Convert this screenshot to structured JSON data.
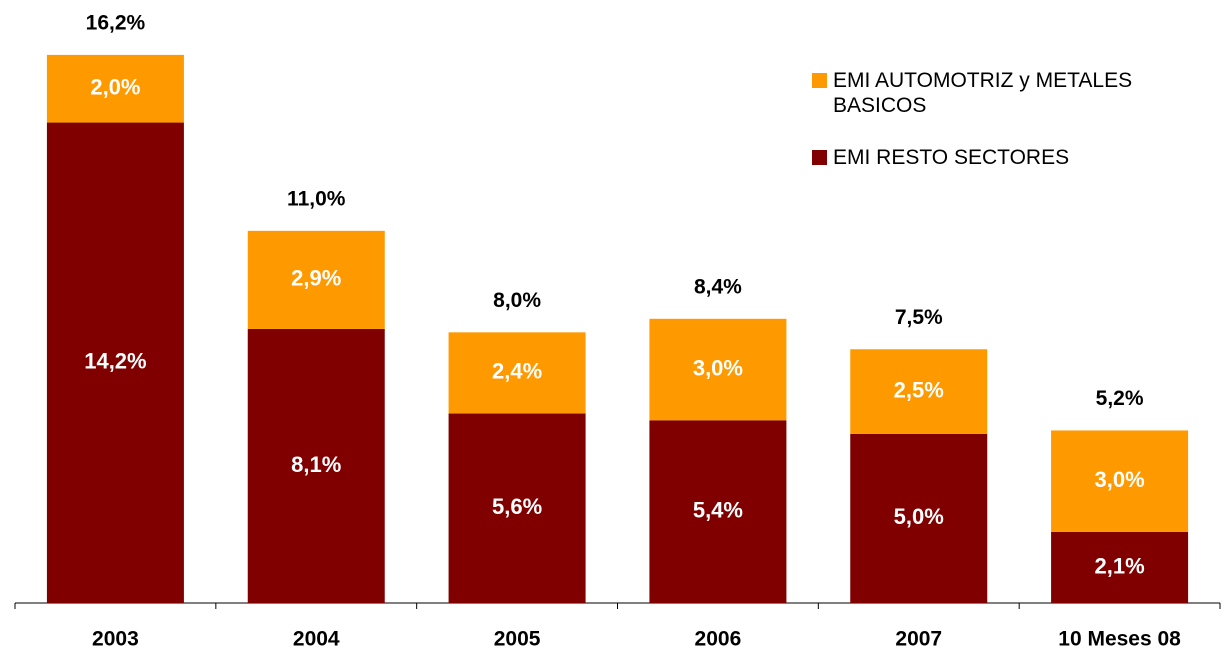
{
  "chart_data": {
    "type": "stacked-bar",
    "categories": [
      "2003",
      "2004",
      "2005",
      "2006",
      "2007",
      "10 Meses 08"
    ],
    "series": [
      {
        "name": "EMI RESTO SECTORES",
        "color": "#800000",
        "values": [
          14.2,
          8.1,
          5.6,
          5.4,
          5.0,
          2.1
        ],
        "value_labels": [
          "14,2%",
          "8,1%",
          "5,6%",
          "5,4%",
          "5,0%",
          "2,1%"
        ]
      },
      {
        "name": "EMI AUTOMOTRIZ y METALES BASICOS",
        "color": "#FF9900",
        "values": [
          2.0,
          2.9,
          2.4,
          3.0,
          2.5,
          3.0
        ],
        "value_labels": [
          "2,0%",
          "2,9%",
          "2,4%",
          "3,0%",
          "2,5%",
          "3,0%"
        ]
      }
    ],
    "totals": {
      "values": [
        16.2,
        11.0,
        8.0,
        8.4,
        7.5,
        5.2
      ],
      "value_labels": [
        "16,2%",
        "11,0%",
        "8,0%",
        "8,4%",
        "7,5%",
        "5,2%"
      ]
    },
    "ylim": [
      0,
      18
    ],
    "legend": "top-right"
  }
}
